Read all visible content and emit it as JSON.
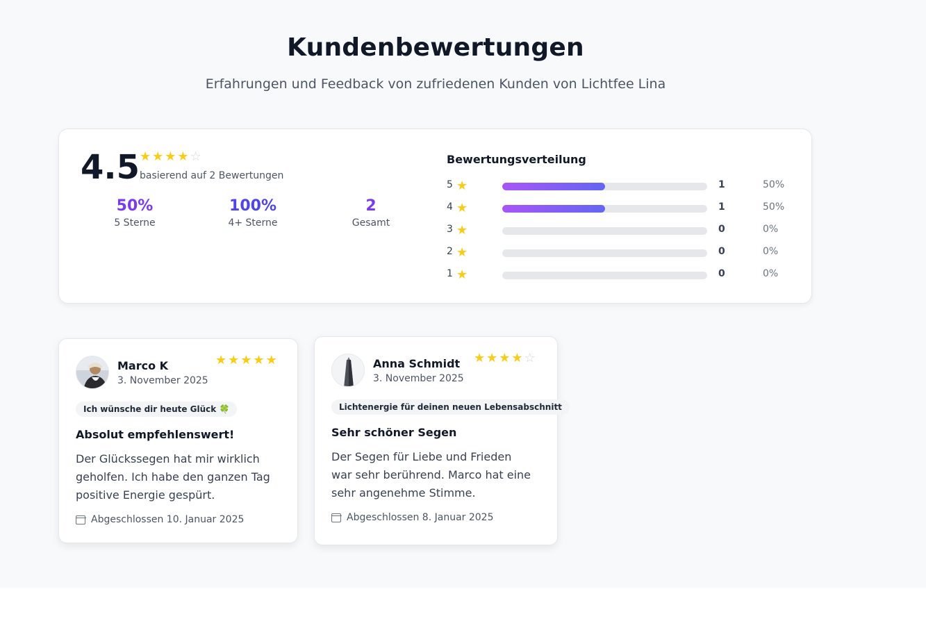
{
  "header": {
    "title": "Kundenbewertungen",
    "subtitle": "Erfahrungen und Feedback von zufriedenen Kunden von Lichtfee Lina"
  },
  "summary": {
    "average": "4.5",
    "average_stars": 4,
    "based_on": "basierend auf 2 Bewertungen",
    "stats": [
      {
        "value": "50%",
        "label": "5 Sterne",
        "color": "#7c3aed"
      },
      {
        "value": "100%",
        "label": "4+ Sterne",
        "color": "#4f46e5"
      },
      {
        "value": "2",
        "label": "Gesamt",
        "color": "#7c3aed"
      }
    ]
  },
  "distribution": {
    "title": "Bewertungsverteilung",
    "rows": [
      {
        "stars": "5",
        "count": "1",
        "percent": "50%",
        "fraction": 0.5
      },
      {
        "stars": "4",
        "count": "1",
        "percent": "50%",
        "fraction": 0.5
      },
      {
        "stars": "3",
        "count": "0",
        "percent": "0%",
        "fraction": 0
      },
      {
        "stars": "2",
        "count": "0",
        "percent": "0%",
        "fraction": 0
      },
      {
        "stars": "1",
        "count": "0",
        "percent": "0%",
        "fraction": 0
      }
    ]
  },
  "reviews": [
    {
      "name": "Marco K",
      "date": "3. November 2025",
      "rating": 5,
      "tag": "Ich wünsche dir heute Glück 🍀",
      "title": "Absolut empfehlenswert!",
      "text": "Der Glückssegen hat mir wirklich geholfen. Ich habe den ganzen Tag positive Energie gespürt.",
      "completed": "Abgeschlossen 10. Januar 2025"
    },
    {
      "name": "Anna Schmidt",
      "date": "3. November 2025",
      "rating": 4,
      "tag": "Lichtenergie für deinen neuen Lebensabschnitt",
      "title": "Sehr schöner Segen",
      "text": "Der Segen für Liebe und Frieden war sehr berührend. Marco hat eine sehr angenehme Stimme.",
      "completed": "Abgeschlossen 8. Januar 2025"
    }
  ]
}
